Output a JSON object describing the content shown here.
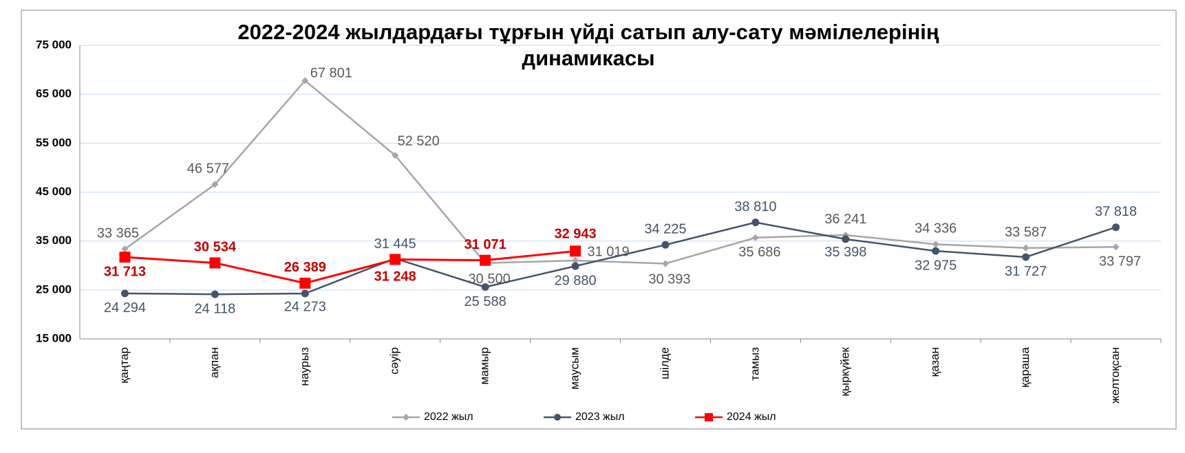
{
  "chart_data": {
    "type": "line",
    "title": "2022-2024 жылдардағы тұрғын үйді сатып алу-сату мәмілелерінің динамикасы",
    "categories": [
      "қаңтар",
      "ақпан",
      "наурыз",
      "сәуір",
      "мамыр",
      "маусым",
      "шілде",
      "тамыз",
      "қыркүйек",
      "қазан",
      "қараша",
      "желтоқсан"
    ],
    "series": [
      {
        "name": "2022 жыл",
        "color": "#a6a6a6",
        "values": [
          33365,
          46577,
          67801,
          52520,
          30500,
          31019,
          30393,
          35686,
          36241,
          34336,
          33587,
          33797
        ],
        "value_labels": [
          "33 365",
          "46 577",
          "67 801",
          "52 520",
          "30 500",
          "31 019",
          "30 393",
          "35 686",
          "36 241",
          "34 336",
          "33 587",
          "33 797"
        ]
      },
      {
        "name": "2023 жыл",
        "color": "#44546a",
        "values": [
          24294,
          24118,
          24273,
          31445,
          25588,
          29880,
          34225,
          38810,
          35398,
          32975,
          31727,
          37818
        ],
        "value_labels": [
          "24 294",
          "24 118",
          "24 273",
          "31 445",
          "25 588",
          "29 880",
          "34 225",
          "38 810",
          "35 398",
          "32 975",
          "31 727",
          "37 818"
        ]
      },
      {
        "name": "2024 жыл",
        "color": "#ff0000",
        "values": [
          31713,
          30534,
          26389,
          31248,
          31071,
          32943,
          null,
          null,
          null,
          null,
          null,
          null
        ],
        "value_labels": [
          "31 713",
          "30 534",
          "26 389",
          "31 248",
          "31 071",
          "32 943",
          null,
          null,
          null,
          null,
          null,
          null
        ]
      }
    ],
    "ylim": [
      15000,
      75000
    ],
    "yticks": [
      {
        "value": 15000,
        "label": "15 000"
      },
      {
        "value": 25000,
        "label": "25 000"
      },
      {
        "value": 35000,
        "label": "35 000"
      },
      {
        "value": 45000,
        "label": "45 000"
      },
      {
        "value": 55000,
        "label": "55 000"
      },
      {
        "value": 65000,
        "label": "65 000"
      },
      {
        "value": 75000,
        "label": "75 000"
      }
    ],
    "grid": true,
    "legend": "bottom"
  }
}
